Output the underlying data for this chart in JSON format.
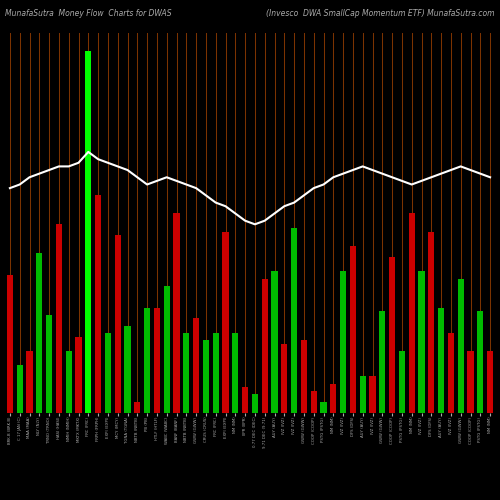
{
  "title_left": "MunafaSutra  Money Flow  Charts for DWAS",
  "title_right": "(Invesco  DWA SmallCap Momentum ETF) MunafaSutra.com",
  "background_color": "#000000",
  "grid_color": "#7B3300",
  "bar_colors": [
    "#cc0000",
    "#00bb00",
    "#cc0000",
    "#00bb00",
    "#00bb00",
    "#cc0000",
    "#00bb00",
    "#cc0000",
    "#00ff00",
    "#cc0000",
    "#00bb00",
    "#cc0000",
    "#00bb00",
    "#cc0000",
    "#00bb00",
    "#cc0000",
    "#00bb00",
    "#cc0000",
    "#00bb00",
    "#cc0000",
    "#00bb00",
    "#00bb00",
    "#cc0000",
    "#00bb00",
    "#cc0000",
    "#00bb00",
    "#cc0000",
    "#00bb00",
    "#cc0000",
    "#00bb00",
    "#cc0000",
    "#cc0000",
    "#00bb00",
    "#cc0000",
    "#00bb00",
    "#cc0000",
    "#00bb00",
    "#cc0000",
    "#00bb00",
    "#cc0000",
    "#00bb00",
    "#cc0000",
    "#00bb00",
    "#cc0000",
    "#00bb00",
    "#cc0000",
    "#00bb00",
    "#cc0000",
    "#00bb00",
    "#cc0000"
  ],
  "bar_heights": [
    0.38,
    0.13,
    0.17,
    0.44,
    0.27,
    0.52,
    0.17,
    0.21,
    1.0,
    0.6,
    0.22,
    0.49,
    0.24,
    0.03,
    0.29,
    0.29,
    0.35,
    0.55,
    0.22,
    0.26,
    0.2,
    0.22,
    0.5,
    0.22,
    0.07,
    0.05,
    0.37,
    0.39,
    0.19,
    0.51,
    0.2,
    0.06,
    0.03,
    0.08,
    0.39,
    0.46,
    0.1,
    0.1,
    0.28,
    0.43,
    0.17,
    0.55,
    0.39,
    0.5,
    0.29,
    0.22,
    0.37,
    0.17,
    0.28,
    0.17
  ],
  "line_y": [
    0.62,
    0.63,
    0.65,
    0.66,
    0.67,
    0.68,
    0.68,
    0.69,
    0.72,
    0.7,
    0.69,
    0.68,
    0.67,
    0.65,
    0.63,
    0.64,
    0.65,
    0.64,
    0.63,
    0.62,
    0.6,
    0.58,
    0.57,
    0.55,
    0.53,
    0.52,
    0.53,
    0.55,
    0.57,
    0.58,
    0.6,
    0.62,
    0.63,
    0.65,
    0.66,
    0.67,
    0.68,
    0.67,
    0.66,
    0.65,
    0.64,
    0.63,
    0.64,
    0.65,
    0.66,
    0.67,
    0.68,
    0.67,
    0.66,
    0.65
  ],
  "xlabels": [
    "BRK.B (BRK.B)",
    "C 17 JAN (C)",
    "MAA (MAA)",
    "NLY (NLY)",
    "TRNO (TRNO)",
    "HASI (HASI)",
    "NMIH (NMIH)",
    "MKTX (MKTX)",
    "FRC (FRC)",
    "FRPH (FRPH)",
    "EXPI (EXPI)",
    "MCY (MCY)",
    "TGNA (TGNA)",
    "NBTB (NBTB)",
    "PB (PB)",
    "HTLF (HTLF)",
    "WABC (WABC)",
    "BANF (BANF)",
    "NBTB (NBTB)",
    "GWW (GWW)",
    "CRUS (CRUS)",
    "FRC (FRC)",
    "EXPI (EXPI)",
    "NM (NM)",
    "IIPR (IIPR)",
    "0.77 DEC (DEC)",
    "9.71 DEC (9.71)",
    "AUY (AUY)",
    "IVZ (IVZ)",
    "IVZ (IVZ)",
    "GWW (GWW)",
    "COOP (COOP)",
    "PSTG (PSTG)",
    "NM (NM)",
    "IVZ (IVZ)",
    "DFS (DFS)",
    "AUY (AUY)",
    "IVZ (IVZ)",
    "GWW (GWW)",
    "COOP (COOP)",
    "PSTG (PSTG)",
    "NM (NM)",
    "IVZ (IVZ)",
    "DFS (DFS)",
    "AUY (AUY)",
    "IVZ (IVZ)",
    "GWW (GWW)",
    "COOP (COOP)",
    "PSTG (PSTG)",
    "NM (NM)"
  ],
  "ylim": [
    0,
    1.05
  ],
  "line_color": "#ffffff",
  "text_color": "#aaaaaa",
  "title_fontsize": 5.5
}
